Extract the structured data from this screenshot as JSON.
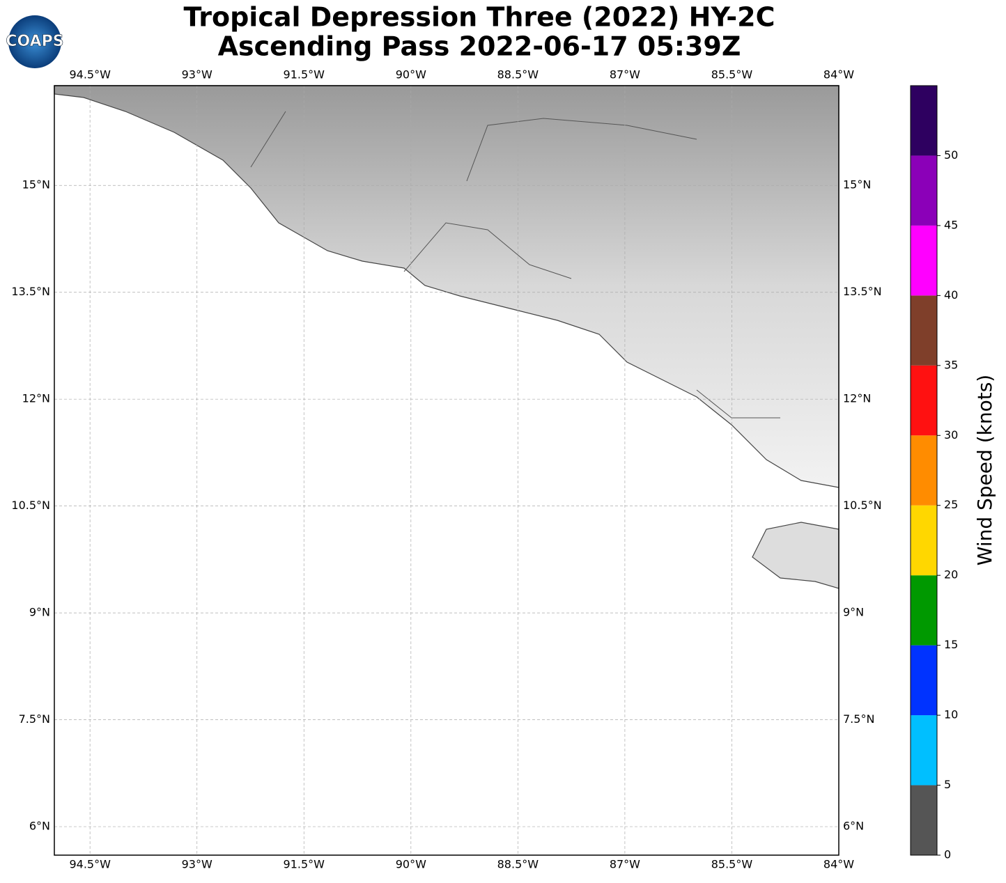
{
  "chart_data": {
    "type": "map",
    "title": "Tropical Depression Three (2022) HY-2C",
    "subtitle": "Ascending Pass 2022-06-17 05:39Z",
    "logo": "COAPS",
    "xlim": [
      -95.0,
      -84.0
    ],
    "ylim": [
      5.6,
      16.4
    ],
    "xticks": [
      {
        "value": -94.5,
        "label": "94.5°W"
      },
      {
        "value": -93,
        "label": "93°W"
      },
      {
        "value": -91.5,
        "label": "91.5°W"
      },
      {
        "value": -90,
        "label": "90°W"
      },
      {
        "value": -88.5,
        "label": "88.5°W"
      },
      {
        "value": -87,
        "label": "87°W"
      },
      {
        "value": -85.5,
        "label": "85.5°W"
      },
      {
        "value": -84,
        "label": "84°W"
      }
    ],
    "yticks": [
      {
        "value": 6,
        "label": "6°N"
      },
      {
        "value": 7.5,
        "label": "7.5°N"
      },
      {
        "value": 9,
        "label": "9°N"
      },
      {
        "value": 10.5,
        "label": "10.5°N"
      },
      {
        "value": 12,
        "label": "12°N"
      },
      {
        "value": 13.5,
        "label": "13.5°N"
      },
      {
        "value": 15,
        "label": "15°N"
      }
    ],
    "grid": true,
    "colorbar": {
      "label": "Wind Speed (knots)",
      "bins": [
        0,
        5,
        10,
        15,
        20,
        25,
        30,
        35,
        40,
        45,
        50,
        55
      ],
      "colors": [
        "#555555",
        "#00bfff",
        "#0033ff",
        "#009900",
        "#ffd700",
        "#ff8c00",
        "#ff1111",
        "#7f3f2a",
        "#ff00ff",
        "#8b00b8",
        "#2e0060"
      ],
      "ticks": [
        0,
        5,
        10,
        15,
        20,
        25,
        30,
        35,
        40,
        45,
        50
      ]
    }
  }
}
